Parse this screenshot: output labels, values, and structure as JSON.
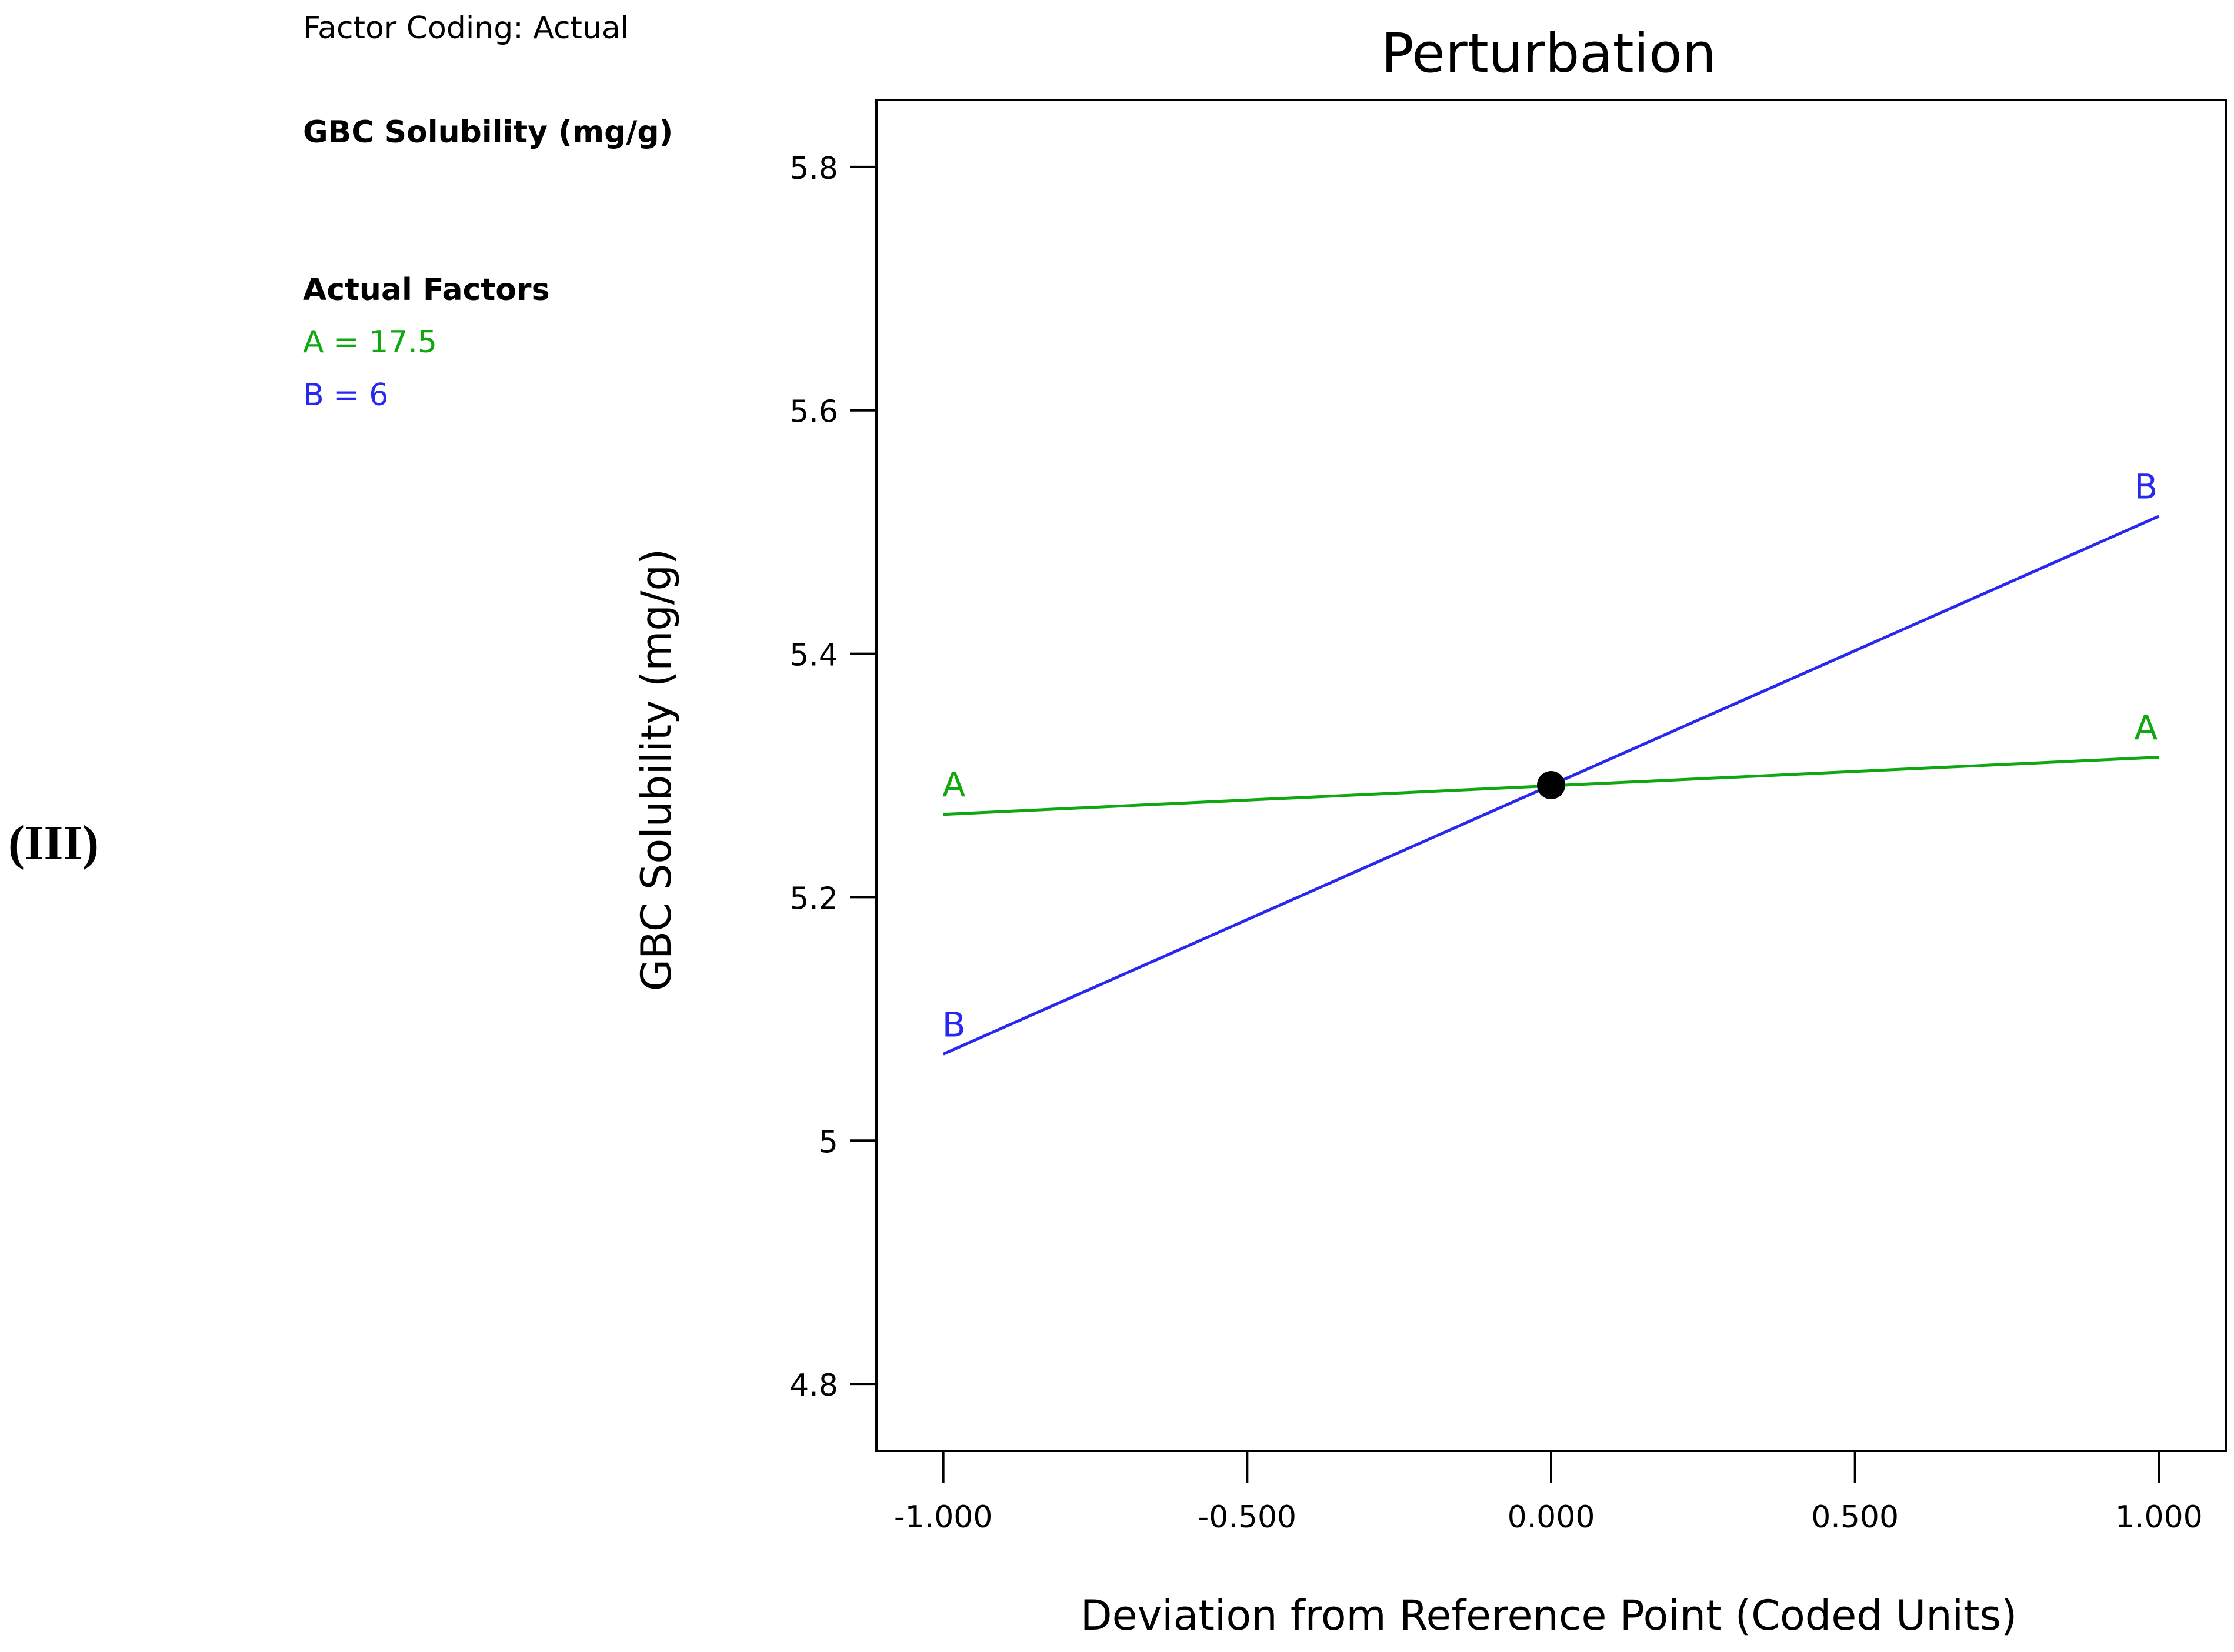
{
  "panel_label": "(III)",
  "info": {
    "factor_coding": "Factor Coding: Actual",
    "response_name": "GBC Solubility (mg/g)",
    "actual_factors_heading": "Actual Factors",
    "factor_a": "A = 17.5",
    "factor_b": "B = 6"
  },
  "colors": {
    "A": "#10a810",
    "B": "#2828f0",
    "axis": "#000000"
  },
  "chart_data": {
    "type": "line",
    "title": "Perturbation",
    "xlabel": "Deviation from Reference Point (Coded Units)",
    "ylabel": "GBC Solubility (mg/g)",
    "xlim": [
      -1.11,
      1.11
    ],
    "ylim": [
      4.745,
      5.855
    ],
    "x_ticks": [
      -1,
      -0.5,
      0,
      0.5,
      1
    ],
    "x_tick_labels": [
      "-1.000",
      "-0.500",
      "0.000",
      "0.500",
      "1.000"
    ],
    "y_ticks": [
      4.8,
      5,
      5.2,
      5.4,
      5.6,
      5.8
    ],
    "y_tick_labels": [
      "4.8",
      "5",
      "5.2",
      "5.4",
      "5.6",
      "5.8"
    ],
    "grid": false,
    "series": [
      {
        "name": "A",
        "color_key": "A",
        "x": [
          -1,
          1
        ],
        "y": [
          5.268,
          5.315
        ]
      },
      {
        "name": "B",
        "color_key": "B",
        "x": [
          -1,
          1
        ],
        "y": [
          5.071,
          5.513
        ]
      }
    ],
    "reference_point": {
      "x": 0,
      "y": 5.292
    }
  }
}
